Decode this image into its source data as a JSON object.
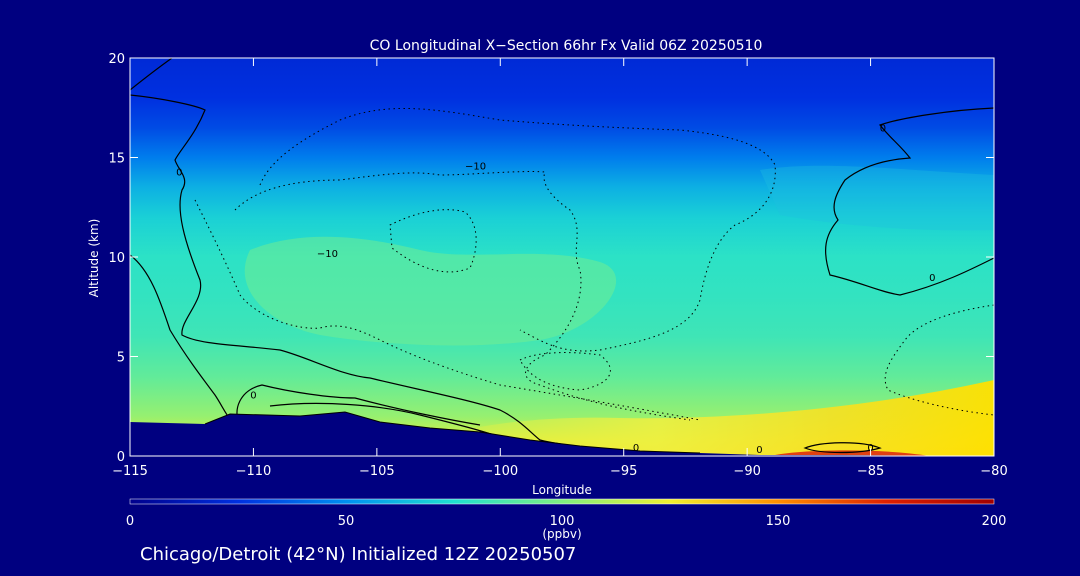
{
  "chart_data": {
    "type": "heatmap",
    "title": "CO Longitudinal X−Section 66hr  Fx Valid 06Z 20250510",
    "xlabel": "Longitude",
    "ylabel": "Altitude (km)",
    "xlim": [
      -115,
      -80
    ],
    "ylim": [
      0,
      20
    ],
    "x_ticks": [
      -115,
      -110,
      -105,
      -100,
      -95,
      -90,
      -85,
      -80
    ],
    "x_tick_labels": [
      "−115",
      "−110",
      "−105",
      "−100",
      "−95",
      "−90",
      "−85",
      "−80"
    ],
    "y_ticks": [
      0,
      5,
      10,
      15,
      20
    ],
    "y_tick_labels": [
      "0",
      "5",
      "10",
      "15",
      "20"
    ],
    "colorbar": {
      "min": 0,
      "max": 200,
      "ticks": [
        0,
        50,
        100,
        150,
        200
      ],
      "tick_labels": [
        "0",
        "50",
        "100",
        "150",
        "200"
      ],
      "unit_label": "(ppbv)",
      "stops": [
        {
          "v": 0,
          "c": "#00008c"
        },
        {
          "v": 25,
          "c": "#0030e0"
        },
        {
          "v": 50,
          "c": "#0090f0"
        },
        {
          "v": 75,
          "c": "#20e0d0"
        },
        {
          "v": 100,
          "c": "#80f080"
        },
        {
          "v": 125,
          "c": "#f0f030"
        },
        {
          "v": 150,
          "c": "#ff9000"
        },
        {
          "v": 175,
          "c": "#e02000"
        },
        {
          "v": 200,
          "c": "#a00000"
        }
      ]
    },
    "co_profile": [
      {
        "alt": 20,
        "ppbv": 22
      },
      {
        "alt": 18,
        "ppbv": 25
      },
      {
        "alt": 16.5,
        "ppbv": 32
      },
      {
        "alt": 15,
        "ppbv": 45
      },
      {
        "alt": 13.5,
        "ppbv": 60
      },
      {
        "alt": 12,
        "ppbv": 70
      },
      {
        "alt": 10,
        "ppbv": 78
      },
      {
        "alt": 8,
        "ppbv": 80
      },
      {
        "alt": 6,
        "ppbv": 83
      },
      {
        "alt": 4,
        "ppbv": 92
      },
      {
        "alt": 2,
        "ppbv": 105
      },
      {
        "alt": 0.8,
        "ppbv": 120
      },
      {
        "alt": 0,
        "ppbv": 128
      }
    ],
    "contour_labels": [
      {
        "text": "0",
        "lon": -113,
        "alt": 14.3
      },
      {
        "text": "−10",
        "lon": -101,
        "alt": 14.6
      },
      {
        "text": "−10",
        "lon": -107,
        "alt": 10.2
      },
      {
        "text": "0",
        "lon": -84.5,
        "alt": 16.5
      },
      {
        "text": "0",
        "lon": -82.5,
        "alt": 9.0
      },
      {
        "text": "0",
        "lon": -110,
        "alt": 3.1
      },
      {
        "text": "0",
        "lon": -94.5,
        "alt": 0.45
      },
      {
        "text": "0",
        "lon": -89.5,
        "alt": 0.35
      },
      {
        "text": "0",
        "lon": -85,
        "alt": 0.45
      }
    ],
    "footer": "Chicago/Detroit (42°N) Initialized 12Z 20250507"
  }
}
